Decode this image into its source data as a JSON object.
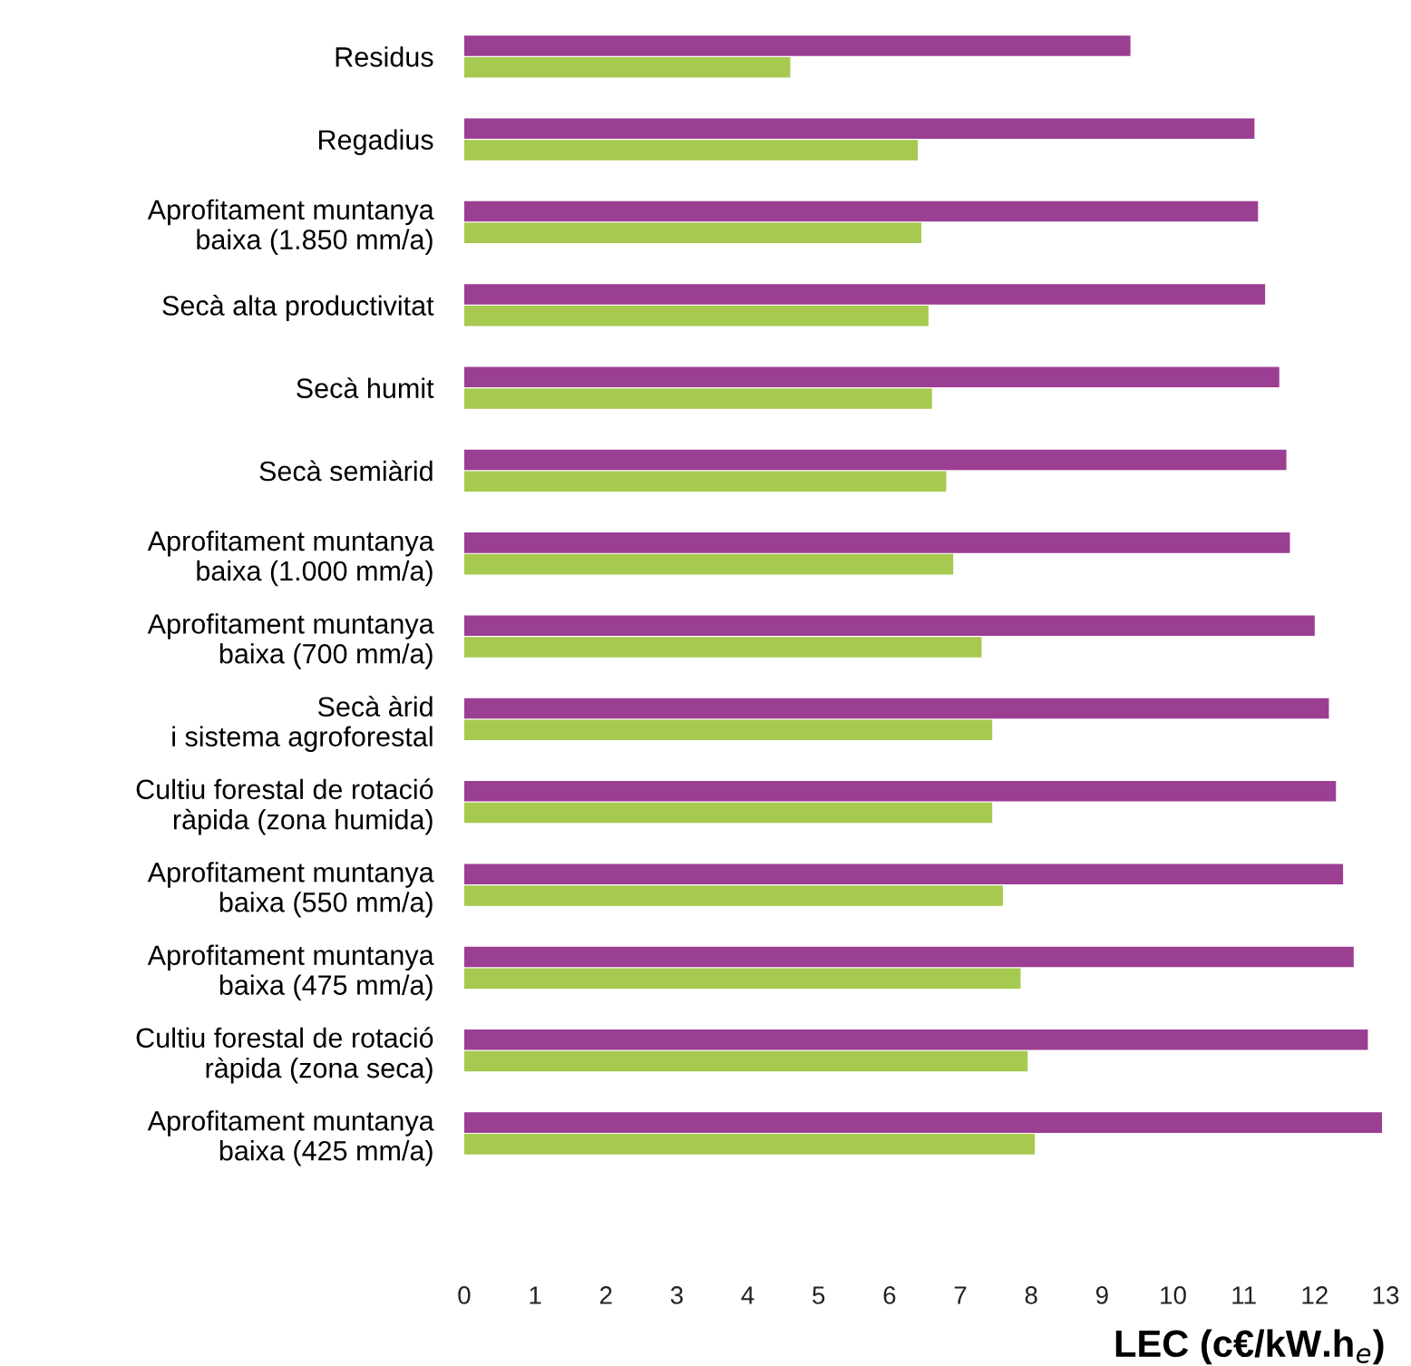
{
  "chart_data": {
    "type": "bar",
    "orientation": "horizontal",
    "xlabel": "LEC (c€/kW.h$_{e}$)",
    "categories": [
      "Residus",
      "Regadius",
      "Aprofitament muntanya\nbaixa (1.850 mm/a)",
      "Secà alta productivitat",
      "Secà humit",
      "Secà semiàrid",
      "Aprofitament muntanya\nbaixa (1.000 mm/a)",
      "Aprofitament muntanya\nbaixa (700 mm/a)",
      "Secà àrid\ni sistema agroforestal",
      "Cultiu forestal de rotació\nràpida (zona humida)",
      "Aprofitament muntanya\nbaixa (550 mm/a)",
      "Aprofitament muntanya\nbaixa (475 mm/a)",
      "Cultiu forestal de rotació\nràpida (zona seca)",
      "Aprofitament muntanya\nbaixa (425 mm/a)"
    ],
    "series": [
      {
        "color": "#9b3f93",
        "values": [
          9.4,
          11.15,
          11.2,
          11.3,
          11.5,
          11.6,
          11.65,
          12.0,
          12.2,
          12.3,
          12.4,
          12.55,
          12.75,
          12.95
        ]
      },
      {
        "color": "#a6c94f",
        "values": [
          4.6,
          6.4,
          6.45,
          6.55,
          6.6,
          6.8,
          6.9,
          7.3,
          7.45,
          7.45,
          7.6,
          7.85,
          7.95,
          8.05
        ]
      }
    ],
    "xlim": [
      0,
      13
    ],
    "xticks": [
      0,
      1,
      2,
      3,
      4,
      5,
      6,
      7,
      8,
      9,
      10,
      11,
      12,
      13
    ],
    "grid": false,
    "legend": false
  }
}
